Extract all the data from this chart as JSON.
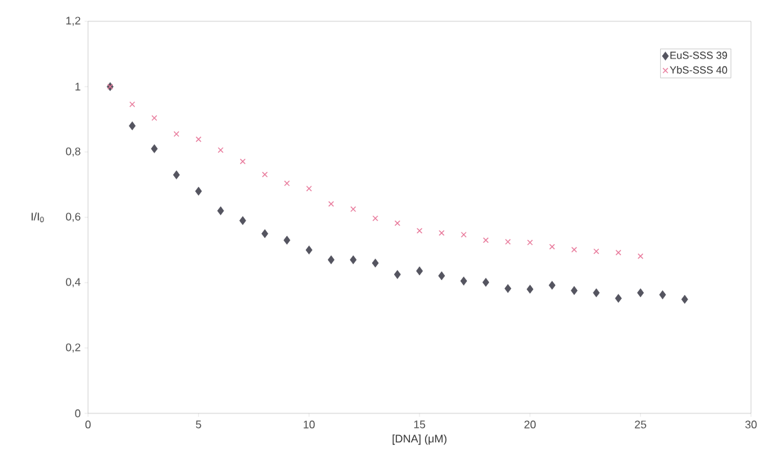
{
  "chart_data": {
    "type": "scatter",
    "xlabel": "[DNA] (μM)",
    "ylabel": "I/I$_{0}$",
    "x": [
      1,
      2,
      3,
      4,
      5,
      6,
      7,
      8,
      9,
      10,
      11,
      12,
      13,
      14,
      15,
      16,
      17,
      18,
      19,
      20,
      21,
      22,
      23,
      24,
      25,
      26,
      27
    ],
    "series": [
      {
        "name": "EuS-SSS 39",
        "color": "#555560",
        "marker": "diamond",
        "values": [
          1.0,
          0.88,
          0.81,
          0.73,
          0.68,
          0.62,
          0.59,
          0.55,
          0.53,
          0.5,
          0.47,
          0.47,
          0.46,
          0.425,
          0.436,
          0.421,
          0.405,
          0.401,
          0.382,
          0.38,
          0.392,
          0.376,
          0.369,
          0.352,
          0.369,
          0.363,
          0.349
        ]
      },
      {
        "name": "YbS-SSS 40",
        "color": "#e8789a",
        "marker": "cross",
        "x": [
          1,
          2,
          3,
          4,
          5,
          6,
          7,
          8,
          9,
          10,
          11,
          12,
          13,
          14,
          15,
          16,
          17,
          18,
          19,
          20,
          21,
          22,
          23,
          24,
          25
        ],
        "values": [
          1.0,
          0.946,
          0.904,
          0.855,
          0.839,
          0.806,
          0.771,
          0.731,
          0.704,
          0.688,
          0.641,
          0.625,
          0.597,
          0.582,
          0.559,
          0.552,
          0.547,
          0.53,
          0.525,
          0.523,
          0.51,
          0.501,
          0.496,
          0.492,
          0.481
        ]
      }
    ],
    "xlim": [
      0,
      30
    ],
    "xticks": [
      0,
      5,
      10,
      15,
      20,
      25,
      30
    ],
    "ylim": [
      0,
      1.2
    ],
    "yticks": [
      0,
      {
        "value": 0.2,
        "label": "0,2"
      },
      {
        "value": 0.4,
        "label": "0,4"
      },
      {
        "value": 0.6,
        "label": "0,6"
      },
      {
        "value": 0.8,
        "label": "0,8"
      },
      1,
      {
        "value": 1.2,
        "label": "1,2"
      }
    ],
    "grid": false,
    "legend": "top right"
  }
}
